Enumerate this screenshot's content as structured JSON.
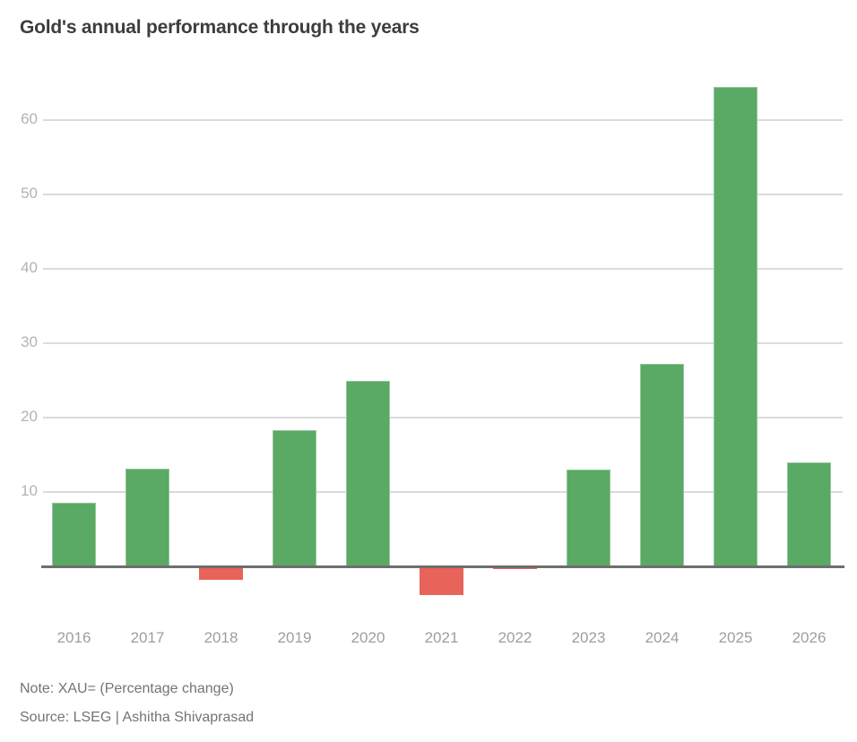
{
  "chart_data": {
    "type": "bar",
    "title": "Gold's annual performance through the years",
    "categories": [
      "2016",
      "2017",
      "2018",
      "2019",
      "2020",
      "2021",
      "2022",
      "2023",
      "2024",
      "2025",
      "2026"
    ],
    "values": [
      8.5,
      13.1,
      -1.8,
      18.3,
      25.0,
      -3.9,
      -0.4,
      13.0,
      27.2,
      64.5,
      14.0
    ],
    "xlabel": "",
    "ylabel": "",
    "yticks": [
      10,
      20,
      30,
      40,
      50,
      60
    ],
    "ylim": [
      -8,
      67
    ],
    "grid": "horizontal gridlines at yticks, light gray, x-axis baseline dark gray",
    "legend_position": "none",
    "note": "Note: XAU= (Percentage change)",
    "source": "Source: LSEG | Ashitha Shivaprasad",
    "colors": {
      "positive_bar": "#5aa964",
      "negative_bar": "#e8635a",
      "gridline": "#dbdbdb",
      "axis_line": "#6e6e6e",
      "ytick_text": "#b3b3b3",
      "xtick_text": "#9e9e9e",
      "title_text": "#3d3d3d",
      "footer_text": "#747474",
      "background": "#ffffff"
    }
  }
}
